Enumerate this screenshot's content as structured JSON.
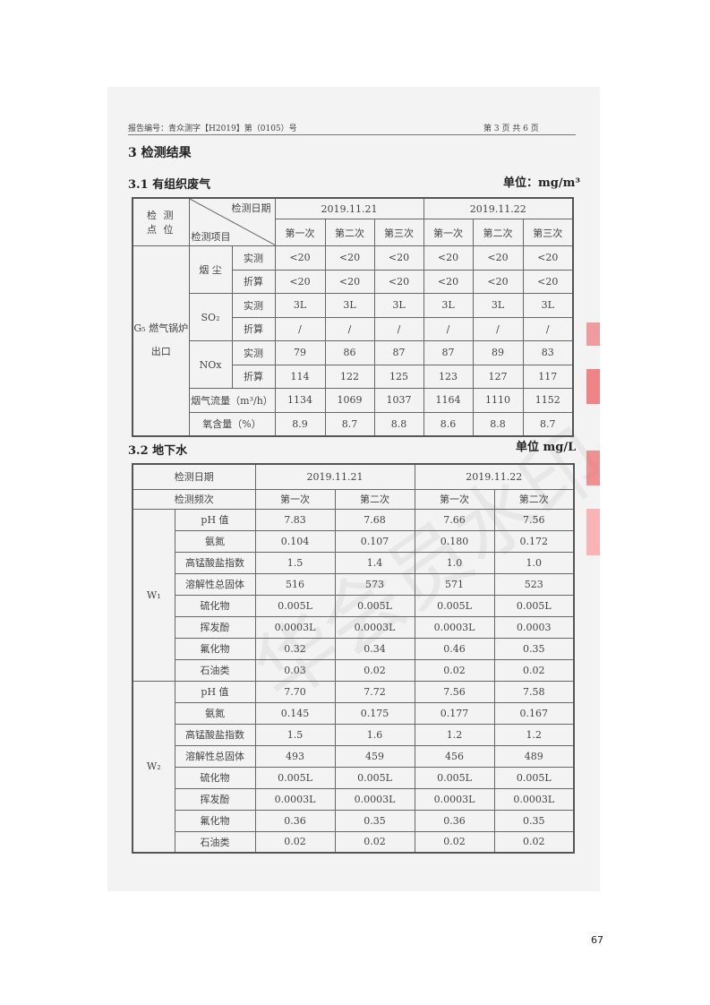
{
  "header": {
    "report_no": "报告编号：青众测字【H2019】第（0105）号",
    "page_info": "第 3 页 共 6 页"
  },
  "section_title": "3 检测结果",
  "air": {
    "title": "3.1 有组织废气",
    "unit": "单位：mg/m³",
    "corner_top": "检测日期",
    "corner_bottom": "检测项目",
    "site_header": "检 测 点 位",
    "dates": [
      "2019.11.21",
      "2019.11.22"
    ],
    "times": [
      "第一次",
      "第二次",
      "第三次",
      "第一次",
      "第二次",
      "第三次"
    ],
    "site": "G₅ 燃气锅炉出口",
    "rows": [
      {
        "item": "烟 尘",
        "sub": "实测",
        "values": [
          "<20",
          "<20",
          "<20",
          "<20",
          "<20",
          "<20"
        ]
      },
      {
        "item": "",
        "sub": "折算",
        "values": [
          "<20",
          "<20",
          "<20",
          "<20",
          "<20",
          "<20"
        ]
      },
      {
        "item": "SO₂",
        "sub": "实测",
        "values": [
          "3L",
          "3L",
          "3L",
          "3L",
          "3L",
          "3L"
        ]
      },
      {
        "item": "",
        "sub": "折算",
        "values": [
          "/",
          "/",
          "/",
          "/",
          "/",
          "/"
        ]
      },
      {
        "item": "NOx",
        "sub": "实测",
        "values": [
          "79",
          "86",
          "87",
          "87",
          "89",
          "83"
        ]
      },
      {
        "item": "",
        "sub": "折算",
        "values": [
          "114",
          "122",
          "125",
          "123",
          "127",
          "117"
        ]
      },
      {
        "item": "烟气流量（m³/h）",
        "sub": "",
        "values": [
          "1134",
          "1069",
          "1037",
          "1164",
          "1110",
          "1152"
        ]
      },
      {
        "item": "氧含量（%）",
        "sub": "",
        "values": [
          "8.9",
          "8.7",
          "8.8",
          "8.6",
          "8.8",
          "8.7"
        ]
      }
    ]
  },
  "water": {
    "title": "3.2 地下水",
    "unit": "单位 mg/L",
    "date_label": "检测日期",
    "freq_label": "检测频次",
    "dates": [
      "2019.11.21",
      "2019.11.22"
    ],
    "times": [
      "第一次",
      "第二次",
      "第一次",
      "第二次"
    ],
    "sites": [
      {
        "name": "W₁",
        "rows": [
          {
            "item": "pH 值",
            "values": [
              "7.83",
              "7.68",
              "7.66",
              "7.56"
            ]
          },
          {
            "item": "氨氮",
            "values": [
              "0.104",
              "0.107",
              "0.180",
              "0.172"
            ]
          },
          {
            "item": "高锰酸盐指数",
            "values": [
              "1.5",
              "1.4",
              "1.0",
              "1.0"
            ]
          },
          {
            "item": "溶解性总固体",
            "values": [
              "516",
              "573",
              "571",
              "523"
            ]
          },
          {
            "item": "硫化物",
            "values": [
              "0.005L",
              "0.005L",
              "0.005L",
              "0.005L"
            ]
          },
          {
            "item": "挥发酚",
            "values": [
              "0.0003L",
              "0.0003L",
              "0.0003L",
              "0.0003"
            ]
          },
          {
            "item": "氟化物",
            "values": [
              "0.32",
              "0.34",
              "0.46",
              "0.35"
            ]
          },
          {
            "item": "石油类",
            "values": [
              "0.03",
              "0.02",
              "0.02",
              "0.02"
            ]
          }
        ]
      },
      {
        "name": "W₂",
        "rows": [
          {
            "item": "pH 值",
            "values": [
              "7.70",
              "7.72",
              "7.56",
              "7.58"
            ]
          },
          {
            "item": "氨氮",
            "values": [
              "0.145",
              "0.175",
              "0.177",
              "0.167"
            ]
          },
          {
            "item": "高锰酸盐指数",
            "values": [
              "1.5",
              "1.6",
              "1.2",
              "1.2"
            ]
          },
          {
            "item": "溶解性总固体",
            "values": [
              "493",
              "459",
              "456",
              "489"
            ]
          },
          {
            "item": "硫化物",
            "values": [
              "0.005L",
              "0.005L",
              "0.005L",
              "0.005L"
            ]
          },
          {
            "item": "挥发酚",
            "values": [
              "0.0003L",
              "0.0003L",
              "0.0003L",
              "0.0003L"
            ]
          },
          {
            "item": "氟化物",
            "values": [
              "0.36",
              "0.35",
              "0.36",
              "0.35"
            ]
          },
          {
            "item": "石油类",
            "values": [
              "0.02",
              "0.02",
              "0.02",
              "0.02"
            ]
          }
        ]
      }
    ]
  },
  "watermark": "华会员水印",
  "page_number": "67",
  "colors": {
    "stamp": "#e05555",
    "scan_bg": "#f3f3f3"
  }
}
